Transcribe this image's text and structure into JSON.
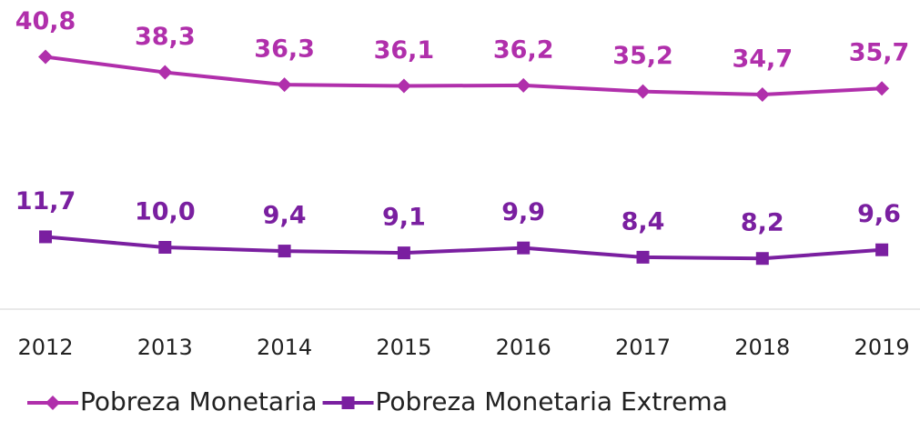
{
  "chart_data": {
    "type": "line",
    "categories": [
      "2012",
      "2013",
      "2014",
      "2015",
      "2016",
      "2017",
      "2018",
      "2019"
    ],
    "series": [
      {
        "name": "Pobreza Monetaria",
        "color": "#b02fab",
        "marker": "diamond",
        "values": [
          40.8,
          38.3,
          36.3,
          36.1,
          36.2,
          35.2,
          34.7,
          35.7
        ],
        "value_labels": [
          "40,8",
          "38,3",
          "36,3",
          "36,1",
          "36,2",
          "35,2",
          "34,7",
          "35,7"
        ]
      },
      {
        "name": "Pobreza Monetaria Extrema",
        "color": "#7a1fa0",
        "marker": "square",
        "values": [
          11.7,
          10.0,
          9.4,
          9.1,
          9.9,
          8.4,
          8.2,
          9.6
        ],
        "value_labels": [
          "11,7",
          "10,0",
          "9,4",
          "9,1",
          "9,9",
          "8,4",
          "8,2",
          "9,6"
        ]
      }
    ],
    "ylim": [
      0,
      50
    ],
    "legend": "bottom"
  }
}
